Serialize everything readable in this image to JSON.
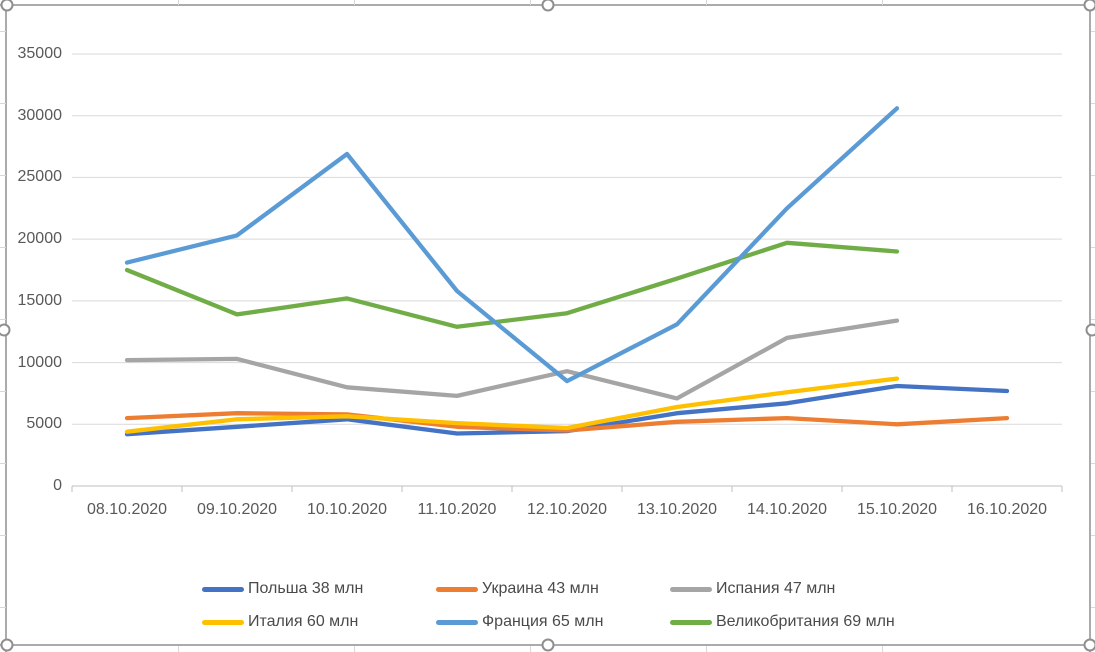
{
  "chart_data": {
    "type": "line",
    "title": "",
    "xlabel": "",
    "ylabel": "",
    "y_ticks": [
      0,
      5000,
      10000,
      15000,
      20000,
      25000,
      30000,
      35000
    ],
    "ylim": [
      0,
      35000
    ],
    "grid": "horizontal",
    "legend_position": "bottom",
    "categories": [
      "08.10.2020",
      "09.10.2020",
      "10.10.2020",
      "11.10.2020",
      "12.10.2020",
      "13.10.2020",
      "14.10.2020",
      "15.10.2020",
      "16.10.2020"
    ],
    "series": [
      {
        "name": "Польша 38 млн",
        "color": "#4472C4",
        "values": [
          4200,
          4800,
          5400,
          4250,
          4450,
          5900,
          6700,
          8100,
          7700
        ]
      },
      {
        "name": "Украина 43 млн",
        "color": "#ED7D31",
        "values": [
          5500,
          5900,
          5800,
          4800,
          4500,
          5200,
          5500,
          5000,
          5500
        ]
      },
      {
        "name": "Испания 47 млн",
        "color": "#A5A5A5",
        "values": [
          10200,
          10300,
          8000,
          7300,
          9300,
          7100,
          12000,
          13400,
          null
        ]
      },
      {
        "name": "Италия 60 млн",
        "color": "#FFC000",
        "values": [
          4400,
          5400,
          5650,
          5100,
          4700,
          6400,
          7600,
          8700,
          null
        ]
      },
      {
        "name": "Франция 65 млн",
        "color": "#5B9BD5",
        "values": [
          18100,
          20300,
          26900,
          15800,
          8500,
          13100,
          22500,
          30600,
          null
        ]
      },
      {
        "name": "Великобритания 69 млн",
        "color": "#70AD47",
        "values": [
          17500,
          13900,
          15200,
          12900,
          14000,
          16800,
          19700,
          19000,
          null
        ]
      }
    ]
  }
}
